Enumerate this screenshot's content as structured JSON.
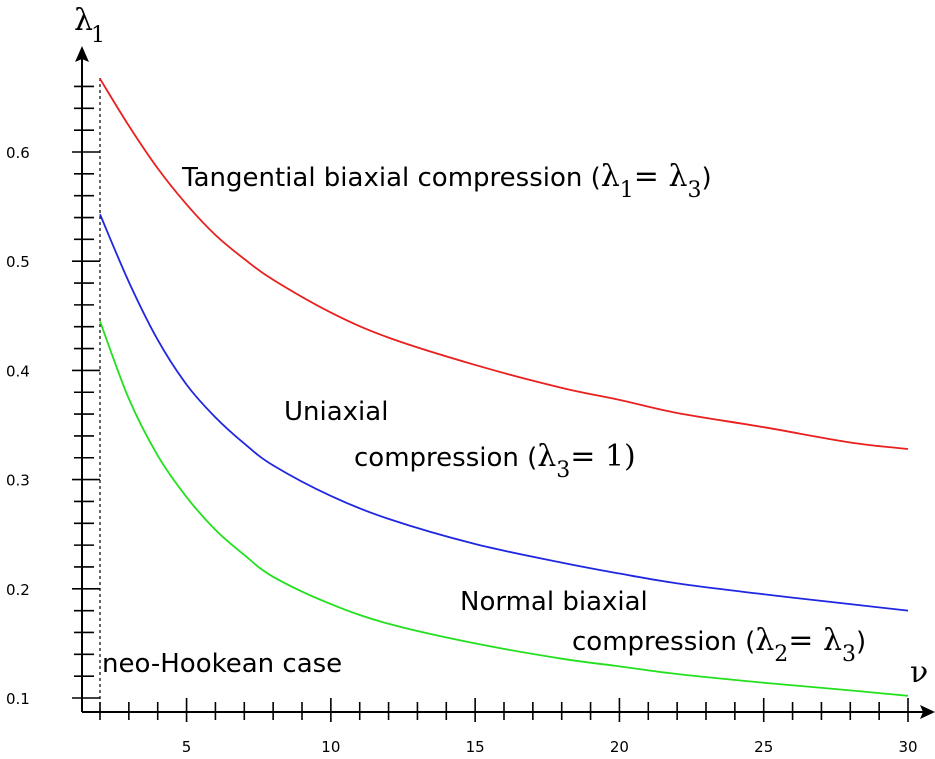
{
  "chart_data": {
    "type": "line",
    "xlabel": "ν",
    "ylabel": "λ",
    "ylabel_sub": "1",
    "xlim": [
      2,
      30
    ],
    "ylim": [
      0.1,
      0.66
    ],
    "x_ticks": [
      5,
      10,
      15,
      20,
      25,
      30
    ],
    "x_tick_labels": [
      "5",
      "10",
      "15",
      "20",
      "25",
      "30"
    ],
    "y_ticks": [
      0.1,
      0.2,
      0.3,
      0.4,
      0.5,
      0.6
    ],
    "y_tick_labels": [
      "0.1",
      "0.2",
      "0.3",
      "0.4",
      "0.5",
      "0.6"
    ],
    "grid": false,
    "reference_line": {
      "x": 2,
      "label": "neo-Hookean case",
      "style": "dashed"
    },
    "series": [
      {
        "color": "#e8201e",
        "label_parts": [
          "Tangential biaxial compression (",
          "λ",
          "1",
          "= ",
          "λ",
          "3",
          ")"
        ],
        "x": [
          2,
          3,
          4,
          5,
          6,
          7,
          8,
          10,
          12,
          15,
          18,
          20,
          22,
          25,
          28,
          30
        ],
        "y": [
          0.667,
          0.624,
          0.585,
          0.552,
          0.524,
          0.502,
          0.483,
          0.453,
          0.43,
          0.405,
          0.384,
          0.373,
          0.361,
          0.348,
          0.334,
          0.328
        ]
      },
      {
        "color": "#1f27e0",
        "label_parts": [
          "Uniaxial",
          "compression (",
          "λ",
          "3",
          "= 1)"
        ],
        "x": [
          2,
          3,
          4,
          5,
          6,
          7,
          8,
          10,
          12,
          15,
          18,
          20,
          22,
          25,
          28,
          30
        ],
        "y": [
          0.543,
          0.481,
          0.428,
          0.387,
          0.357,
          0.333,
          0.313,
          0.285,
          0.264,
          0.241,
          0.224,
          0.214,
          0.205,
          0.195,
          0.186,
          0.18
        ]
      },
      {
        "color": "#22e01e",
        "label_parts": [
          "Normal biaxial",
          "compression (",
          "λ",
          "2",
          "= ",
          "λ",
          "3",
          ")"
        ],
        "x": [
          2,
          3,
          4,
          5,
          6,
          7,
          8,
          10,
          12,
          15,
          18,
          20,
          22,
          25,
          28,
          30
        ],
        "y": [
          0.445,
          0.374,
          0.322,
          0.284,
          0.254,
          0.231,
          0.211,
          0.186,
          0.168,
          0.15,
          0.136,
          0.129,
          0.122,
          0.114,
          0.107,
          0.102
        ]
      }
    ]
  }
}
